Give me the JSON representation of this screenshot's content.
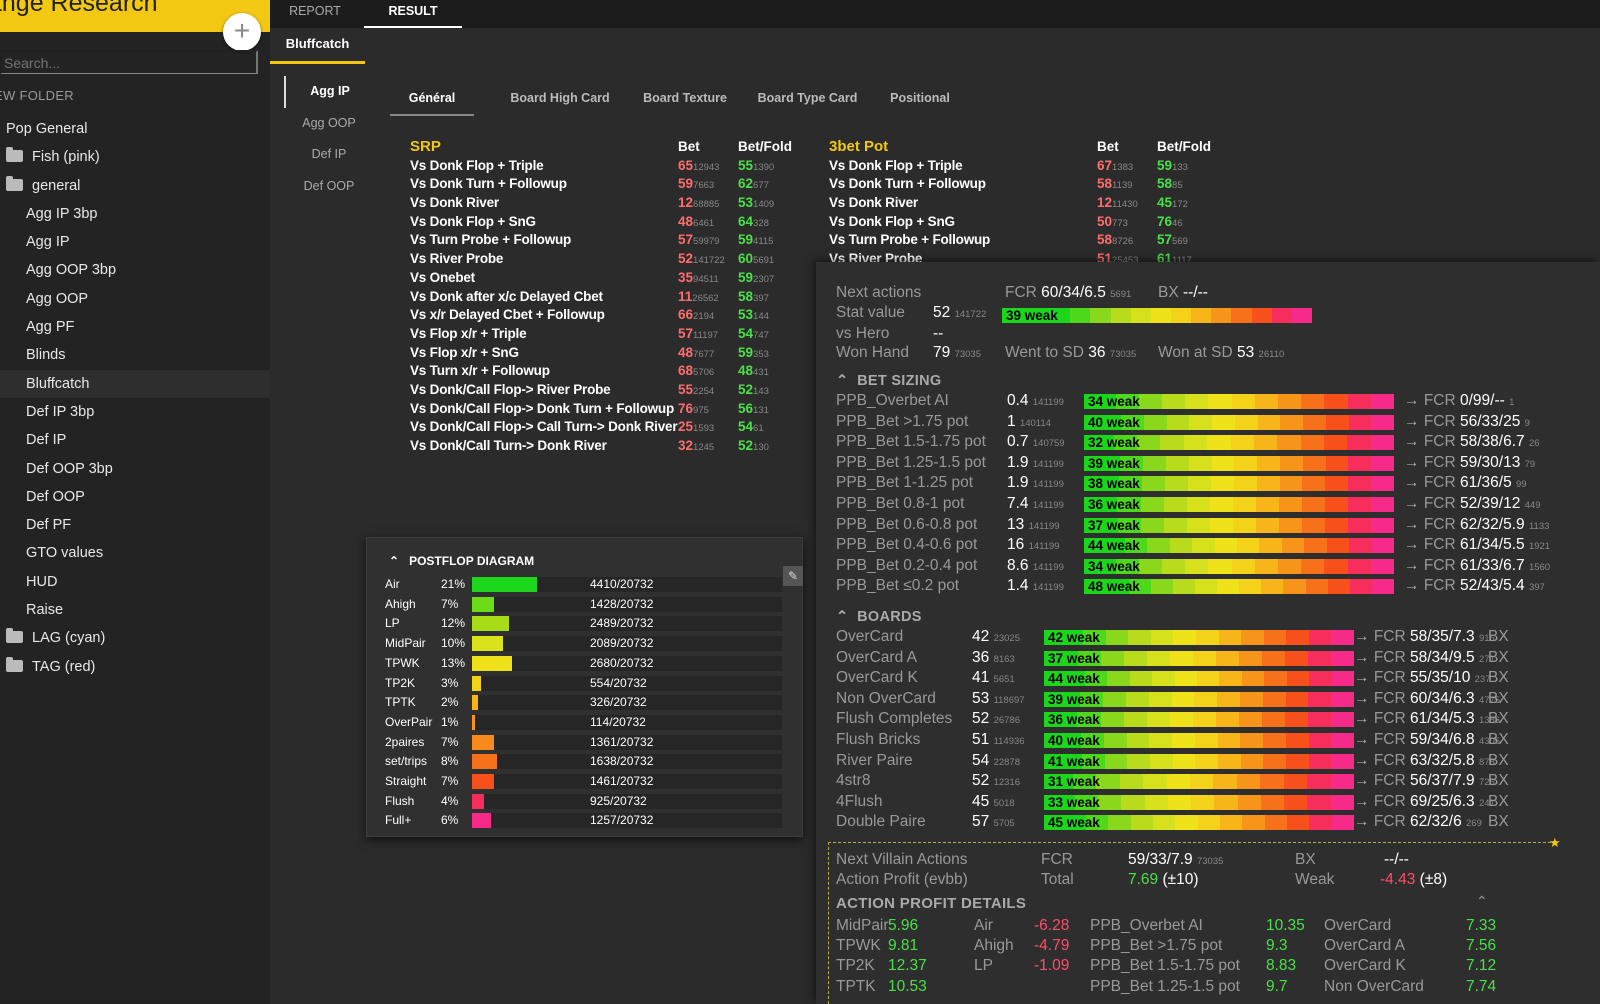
{
  "app": {
    "brand": "ange Research",
    "add": "+",
    "search_placeholder": "Search...",
    "new_folder": "EW FOLDER"
  },
  "folders": [
    {
      "label": "Pop General",
      "icon": "",
      "indent": 6
    },
    {
      "label": "Fish (pink)",
      "icon": "folder",
      "indent": 6
    },
    {
      "label": "general",
      "icon": "folder",
      "indent": 6
    },
    {
      "label": "Agg IP 3bp",
      "icon": "",
      "indent": 26
    },
    {
      "label": "Agg IP",
      "icon": "",
      "indent": 26
    },
    {
      "label": "Agg OOP 3bp",
      "icon": "",
      "indent": 26
    },
    {
      "label": "Agg OOP",
      "icon": "",
      "indent": 26
    },
    {
      "label": "Agg PF",
      "icon": "",
      "indent": 26
    },
    {
      "label": "Blinds",
      "icon": "",
      "indent": 26
    },
    {
      "label": "Bluffcatch",
      "icon": "",
      "indent": 26,
      "selected": true
    },
    {
      "label": "Def IP 3bp",
      "icon": "",
      "indent": 26
    },
    {
      "label": "Def IP",
      "icon": "",
      "indent": 26
    },
    {
      "label": "Def OOP 3bp",
      "icon": "",
      "indent": 26
    },
    {
      "label": "Def OOP",
      "icon": "",
      "indent": 26
    },
    {
      "label": "Def PF",
      "icon": "",
      "indent": 26
    },
    {
      "label": "GTO values",
      "icon": "",
      "indent": 26
    },
    {
      "label": "HUD",
      "icon": "",
      "indent": 26
    },
    {
      "label": "Raise",
      "icon": "",
      "indent": 26
    },
    {
      "label": "LAG (cyan)",
      "icon": "folder",
      "indent": 6
    },
    {
      "label": "TAG (red)",
      "icon": "folder",
      "indent": 6
    }
  ],
  "top_tabs": {
    "report": "REPORT",
    "result": "RESULT"
  },
  "sub_tab": "Bluffcatch",
  "vtabs": [
    "Agg IP",
    "Agg OOP",
    "Def IP",
    "Def OOP"
  ],
  "htabs": [
    "Général",
    "Board High Card",
    "Board Texture",
    "Board Type Card",
    "Positional"
  ],
  "srp": {
    "title": "SRP",
    "bet": "Bet",
    "betfold": "Bet/Fold",
    "rows": [
      [
        "Vs Donk Flop + Triple",
        "65",
        "12943",
        "55",
        "1390"
      ],
      [
        "Vs Donk Turn + Followup",
        "59",
        "7663",
        "62",
        "677"
      ],
      [
        "Vs Donk River",
        "12",
        "68885",
        "53",
        "1409"
      ],
      [
        "Vs Donk Flop + SnG",
        "48",
        "6461",
        "64",
        "328"
      ],
      [
        "Vs Turn Probe + Followup",
        "57",
        "59979",
        "59",
        "4115"
      ],
      [
        "Vs River Probe",
        "52",
        "141722",
        "60",
        "5691"
      ],
      [
        "Vs Onebet",
        "35",
        "94511",
        "59",
        "2307"
      ],
      [
        "Vs Donk after x/c Delayed Cbet",
        "11",
        "26562",
        "58",
        "397"
      ],
      [
        "Vs x/r Delayed Cbet + Followup",
        "66",
        "2194",
        "53",
        "144"
      ],
      [
        "Vs Flop x/r + Triple",
        "57",
        "11197",
        "54",
        "747"
      ],
      [
        "Vs Flop x/r + SnG",
        "48",
        "7677",
        "59",
        "353"
      ],
      [
        "Vs Turn x/r + Followup",
        "68",
        "5706",
        "48",
        "431"
      ],
      [
        "Vs Donk/Call Flop-> River Probe",
        "55",
        "2254",
        "52",
        "143"
      ],
      [
        "Vs Donk/Call Flop-> Donk Turn + Followup",
        "76",
        "975",
        "56",
        "131"
      ],
      [
        "Vs Donk/Call Flop-> Call Turn-> Donk River",
        "25",
        "1593",
        "54",
        "61"
      ],
      [
        "Vs Donk/Call Turn-> Donk River",
        "32",
        "1245",
        "52",
        "130"
      ]
    ]
  },
  "threebet": {
    "title": "3bet Pot",
    "bet": "Bet",
    "betfold": "Bet/Fold",
    "rows": [
      [
        "Vs Donk Flop + Triple",
        "67",
        "1383",
        "59",
        "133"
      ],
      [
        "Vs Donk Turn + Followup",
        "58",
        "1139",
        "58",
        "85"
      ],
      [
        "Vs Donk River",
        "12",
        "11430",
        "45",
        "172"
      ],
      [
        "Vs Donk Flop + SnG",
        "50",
        "773",
        "76",
        "46"
      ],
      [
        "Vs Turn Probe + Followup",
        "58",
        "8726",
        "57",
        "569"
      ],
      [
        "Vs River Probe",
        "51",
        "25453",
        "61",
        "1117"
      ]
    ]
  },
  "postflop": {
    "title": "POSTFLOP DIAGRAM",
    "pin": "📌",
    "rows": [
      {
        "label": "Air",
        "pct": "21%",
        "frac": 0.21,
        "count": "4410/20732",
        "color": "#1bd61b"
      },
      {
        "label": "Ahigh",
        "pct": "7%",
        "frac": 0.07,
        "count": "1428/20732",
        "color": "#6cdc17"
      },
      {
        "label": "LP",
        "pct": "12%",
        "frac": 0.12,
        "count": "2489/20732",
        "color": "#a8dc17"
      },
      {
        "label": "MidPair",
        "pct": "10%",
        "frac": 0.1,
        "count": "2089/20732",
        "color": "#d9e21a"
      },
      {
        "label": "TPWK",
        "pct": "13%",
        "frac": 0.13,
        "count": "2680/20732",
        "color": "#f0e21a"
      },
      {
        "label": "TP2K",
        "pct": "3%",
        "frac": 0.03,
        "count": "554/20732",
        "color": "#f5d21a"
      },
      {
        "label": "TPTK",
        "pct": "2%",
        "frac": 0.02,
        "count": "326/20732",
        "color": "#f7b51a"
      },
      {
        "label": "OverPair",
        "pct": "1%",
        "frac": 0.01,
        "count": "114/20732",
        "color": "#f7951a"
      },
      {
        "label": "2paires",
        "pct": "7%",
        "frac": 0.07,
        "count": "1361/20732",
        "color": "#f78a1a"
      },
      {
        "label": "set/trips",
        "pct": "8%",
        "frac": 0.08,
        "count": "1638/20732",
        "color": "#f7701a"
      },
      {
        "label": "Straight",
        "pct": "7%",
        "frac": 0.07,
        "count": "1461/20732",
        "color": "#f7501a"
      },
      {
        "label": "Flush",
        "pct": "4%",
        "frac": 0.04,
        "count": "925/20732",
        "color": "#f72d5c"
      },
      {
        "label": "Full+",
        "pct": "6%",
        "frac": 0.06,
        "count": "1257/20732",
        "color": "#f72a8a"
      }
    ]
  },
  "stats": {
    "next_actions": "Next actions",
    "fcr_label": "FCR",
    "fcr_val": "60/34/6.5",
    "fcr_n": "5691",
    "bx_label": "BX",
    "bx_val": "--/--",
    "stat_value": "Stat value",
    "sv": "52",
    "sv_n": "141722",
    "sv_weak": "39 weak",
    "vs_hero": "vs Hero",
    "vs_hero_val": "--",
    "won_hand": "Won Hand",
    "wh": "79",
    "wh_n": "73035",
    "went_sd": "Went to SD",
    "wsd": "36",
    "wsd_n": "73035",
    "won_sd": "Won at SD",
    "wasd": "53",
    "wasd_n": "26110"
  },
  "bet_sizing": {
    "title": "BET SIZING",
    "rows": [
      {
        "name": "PPB_Overbet AI",
        "v": "0.4",
        "n": "141199",
        "weak": "34 weak",
        "fcr": "0/99/--",
        "fn": "1"
      },
      {
        "name": "PPB_Bet >1.75 pot",
        "v": "1",
        "n": "140114",
        "weak": "40 weak",
        "fcr": "56/33/25",
        "fn": "9"
      },
      {
        "name": "PPB_Bet 1.5-1.75 pot",
        "v": "0.7",
        "n": "140759",
        "weak": "32 weak",
        "fcr": "58/38/6.7",
        "fn": "26"
      },
      {
        "name": "PPB_Bet 1.25-1.5 pot",
        "v": "1.9",
        "n": "141199",
        "weak": "39 weak",
        "fcr": "59/30/13",
        "fn": "79"
      },
      {
        "name": "PPB_Bet 1-1.25 pot",
        "v": "1.9",
        "n": "141199",
        "weak": "38 weak",
        "fcr": "61/36/5",
        "fn": "99"
      },
      {
        "name": "PPB_Bet 0.8-1 pot",
        "v": "7.4",
        "n": "141199",
        "weak": "36 weak",
        "fcr": "52/39/12",
        "fn": "449"
      },
      {
        "name": "PPB_Bet 0.6-0.8 pot",
        "v": "13",
        "n": "141199",
        "weak": "37 weak",
        "fcr": "62/32/5.9",
        "fn": "1133"
      },
      {
        "name": "PPB_Bet 0.4-0.6 pot",
        "v": "16",
        "n": "141199",
        "weak": "44 weak",
        "fcr": "61/34/5.5",
        "fn": "1921"
      },
      {
        "name": "PPB_Bet 0.2-0.4 pot",
        "v": "8.6",
        "n": "141199",
        "weak": "34 weak",
        "fcr": "61/33/6.7",
        "fn": "1560"
      },
      {
        "name": "PPB_Bet ≤0.2 pot",
        "v": "1.4",
        "n": "141199",
        "weak": "48 weak",
        "fcr": "52/43/5.4",
        "fn": "397"
      }
    ]
  },
  "boards": {
    "title": "BOARDS",
    "arrow": "→",
    "fcr_label": "FCR",
    "bx_label": "BX",
    "rows": [
      {
        "name": "OverCard",
        "v": "42",
        "n": "23025",
        "weak": "42 weak",
        "fcr": "58/35/7.3",
        "fn": "916"
      },
      {
        "name": "OverCard A",
        "v": "36",
        "n": "8163",
        "weak": "37 weak",
        "fcr": "58/34/9.5",
        "fn": "271"
      },
      {
        "name": "OverCard K",
        "v": "41",
        "n": "5651",
        "weak": "44 weak",
        "fcr": "55/35/10",
        "fn": "237"
      },
      {
        "name": "Non OverCard",
        "v": "53",
        "n": "118697",
        "weak": "39 weak",
        "fcr": "60/34/6.3",
        "fn": "4775"
      },
      {
        "name": "Flush Completes",
        "v": "52",
        "n": "26786",
        "weak": "36 weak",
        "fcr": "61/34/5.3",
        "fn": "1386"
      },
      {
        "name": "Flush Bricks",
        "v": "51",
        "n": "114936",
        "weak": "40 weak",
        "fcr": "59/34/6.8",
        "fn": "4305"
      },
      {
        "name": "River Paire",
        "v": "54",
        "n": "22878",
        "weak": "41 weak",
        "fcr": "63/32/5.8",
        "fn": "878"
      },
      {
        "name": "4str8",
        "v": "52",
        "n": "12316",
        "weak": "31 weak",
        "fcr": "56/37/7.9",
        "fn": "726"
      },
      {
        "name": "4Flush",
        "v": "45",
        "n": "5018",
        "weak": "33 weak",
        "fcr": "69/25/6.3",
        "fn": "241"
      },
      {
        "name": "Double Paire",
        "v": "57",
        "n": "5705",
        "weak": "45 weak",
        "fcr": "62/32/6",
        "fn": "269"
      }
    ]
  },
  "villain": {
    "title": "Next Villain Actions",
    "fcr": "FCR",
    "fcr_val": "59/33/7.9",
    "fcr_n": "73035",
    "bx": "BX",
    "bx_val": "--/--",
    "profit": "Action Profit (evbb)",
    "total": "Total",
    "total_val": "7.69",
    "total_pm": "(±10)",
    "weak": "Weak",
    "weak_val": "-4.43",
    "weak_pm": "(±8)",
    "details": "ACTION PROFIT DETAILS"
  },
  "apd": [
    [
      [
        "MidPair",
        "5.96",
        "g"
      ],
      [
        "TPWK",
        "9.81",
        "g"
      ],
      [
        "TP2K",
        "12.37",
        "g"
      ],
      [
        "TPTK",
        "10.53",
        "g"
      ]
    ],
    [
      [
        "Air",
        "-6.28",
        "r"
      ],
      [
        "Ahigh",
        "-4.79",
        "r"
      ],
      [
        "LP",
        "-1.09",
        "r"
      ],
      [
        "",
        "",
        ""
      ]
    ],
    [
      [
        "PPB_Overbet AI",
        "10.35",
        "g"
      ],
      [
        "PPB_Bet >1.75 pot",
        "9.3",
        "g"
      ],
      [
        "PPB_Bet 1.5-1.75 pot",
        "8.83",
        "g"
      ],
      [
        "PPB_Bet 1.25-1.5 pot",
        "9.7",
        "g"
      ]
    ],
    [
      [
        "OverCard",
        "7.33",
        "g"
      ],
      [
        "OverCard A",
        "7.56",
        "g"
      ],
      [
        "OverCard K",
        "7.12",
        "g"
      ],
      [
        "Non OverCard",
        "7.74",
        "g"
      ]
    ]
  ],
  "colors": {
    "accent": "#f3c813",
    "bet": "#ff6d6d",
    "fold": "#49e049"
  }
}
